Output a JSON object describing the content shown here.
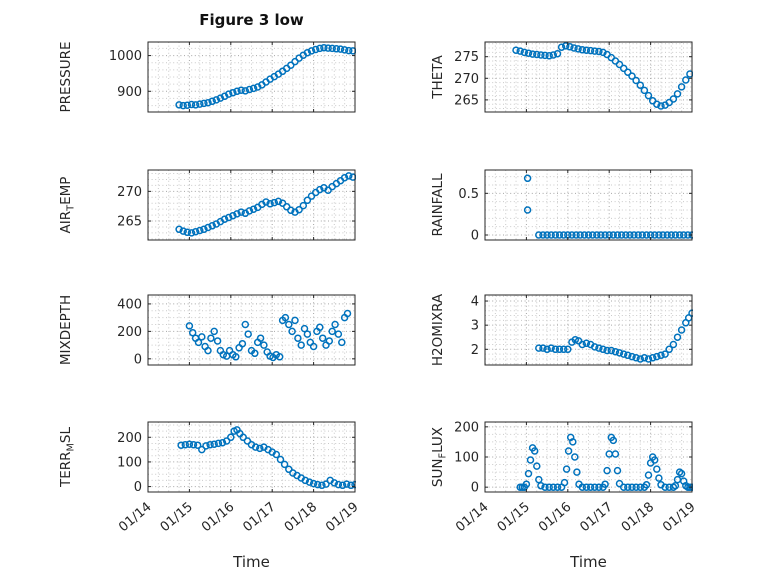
{
  "title": "Figure 3 low",
  "xlabel": "Time",
  "colors": {
    "marker": "#0072BD",
    "grid_major": "#a6a6a6",
    "grid_minor": "#c9c9c9",
    "axis": "#262626",
    "text": "#262626",
    "background": "#ffffff"
  },
  "axes": {
    "xlim": [
      0,
      5
    ],
    "xminor": 0.25,
    "xticks": [
      0,
      1,
      2,
      3,
      4,
      5
    ],
    "xticklabels": [
      "01/14",
      "01/15",
      "01/16",
      "01/17",
      "01/18",
      "01/19"
    ]
  },
  "chart_data": [
    {
      "type": "scatter",
      "id": "pressure",
      "name": "PRESSURE",
      "row": 0,
      "col": 0,
      "label_parts": [
        {
          "t": "PRESSURE"
        }
      ],
      "ylim": [
        842,
        1038
      ],
      "yticks": [
        900,
        1000
      ],
      "ygrid_step": 20,
      "x": [
        0.75,
        0.85,
        0.95,
        1.05,
        1.15,
        1.25,
        1.35,
        1.45,
        1.55,
        1.65,
        1.75,
        1.85,
        1.95,
        2.05,
        2.15,
        2.25,
        2.35,
        2.45,
        2.55,
        2.65,
        2.75,
        2.85,
        2.95,
        3.05,
        3.15,
        3.25,
        3.35,
        3.45,
        3.55,
        3.65,
        3.75,
        3.85,
        3.95,
        4.05,
        4.15,
        4.25,
        4.35,
        4.45,
        4.55,
        4.65,
        4.75,
        4.85,
        4.95
      ],
      "y": [
        862,
        860,
        861,
        863,
        862,
        864,
        866,
        868,
        872,
        876,
        881,
        886,
        892,
        896,
        900,
        903,
        901,
        905,
        908,
        912,
        918,
        926,
        934,
        941,
        948,
        956,
        964,
        973,
        983,
        993,
        1001,
        1008,
        1013,
        1017,
        1020,
        1022,
        1021,
        1020,
        1019,
        1018,
        1016,
        1014,
        1013
      ]
    },
    {
      "type": "scatter",
      "id": "theta",
      "name": "THETA",
      "row": 0,
      "col": 1,
      "label_parts": [
        {
          "t": "THETA"
        }
      ],
      "ylim": [
        262.2,
        278.4
      ],
      "yticks": [
        265,
        270,
        275
      ],
      "ygrid_step": 1,
      "x": [
        0.75,
        0.85,
        0.95,
        1.05,
        1.15,
        1.25,
        1.35,
        1.45,
        1.55,
        1.65,
        1.75,
        1.85,
        1.95,
        2.05,
        2.15,
        2.25,
        2.35,
        2.45,
        2.55,
        2.65,
        2.75,
        2.85,
        2.95,
        3.05,
        3.15,
        3.25,
        3.35,
        3.45,
        3.55,
        3.65,
        3.75,
        3.85,
        3.95,
        4.05,
        4.15,
        4.25,
        4.35,
        4.45,
        4.55,
        4.65,
        4.75,
        4.85,
        4.95
      ],
      "y": [
        276.5,
        276.3,
        276.0,
        275.8,
        275.6,
        275.5,
        275.4,
        275.3,
        275.2,
        275.4,
        275.7,
        277.2,
        277.5,
        277.3,
        277.0,
        276.8,
        276.6,
        276.5,
        276.4,
        276.3,
        276.2,
        276.0,
        275.5,
        274.8,
        274.0,
        273.2,
        272.3,
        271.4,
        270.5,
        269.5,
        268.4,
        267.2,
        266.0,
        264.8,
        264.0,
        263.6,
        263.8,
        264.4,
        265.2,
        266.4,
        268.0,
        269.6,
        271.0
      ]
    },
    {
      "type": "scatter",
      "id": "air-temp",
      "name": "AIR_TEMP",
      "row": 1,
      "col": 0,
      "label_parts": [
        {
          "t": "AIR"
        },
        {
          "t": "T",
          "sub": true
        },
        {
          "t": "EMP"
        }
      ],
      "ylim": [
        261.8,
        273.6
      ],
      "yticks": [
        265,
        270
      ],
      "ygrid_step": 1,
      "x": [
        0.75,
        0.85,
        0.95,
        1.05,
        1.15,
        1.25,
        1.35,
        1.45,
        1.55,
        1.65,
        1.75,
        1.85,
        1.95,
        2.05,
        2.15,
        2.25,
        2.35,
        2.45,
        2.55,
        2.65,
        2.75,
        2.85,
        2.95,
        3.05,
        3.15,
        3.25,
        3.35,
        3.45,
        3.55,
        3.65,
        3.75,
        3.85,
        3.95,
        4.05,
        4.15,
        4.25,
        4.35,
        4.45,
        4.55,
        4.65,
        4.75,
        4.85,
        4.95
      ],
      "y": [
        263.6,
        263.3,
        263.1,
        263.0,
        263.2,
        263.4,
        263.6,
        263.9,
        264.2,
        264.5,
        264.9,
        265.3,
        265.6,
        265.9,
        266.2,
        266.5,
        266.3,
        266.7,
        267.0,
        267.3,
        267.8,
        268.2,
        267.9,
        268.1,
        268.3,
        268.0,
        267.4,
        266.8,
        266.5,
        266.9,
        267.6,
        268.5,
        269.2,
        269.8,
        270.3,
        270.6,
        270.2,
        270.8,
        271.3,
        271.8,
        272.3,
        272.6,
        272.4
      ]
    },
    {
      "type": "scatter",
      "id": "rainfall",
      "name": "RAINFALL",
      "row": 1,
      "col": 1,
      "label_parts": [
        {
          "t": "RAINFALL"
        }
      ],
      "ylim": [
        -0.06,
        0.78
      ],
      "yticks": [
        0,
        0.5
      ],
      "ygrid_step": 0.1,
      "x": [
        1.03,
        1.03,
        1.3,
        1.4,
        1.5,
        1.6,
        1.7,
        1.8,
        1.9,
        2.0,
        2.1,
        2.2,
        2.3,
        2.4,
        2.5,
        2.6,
        2.7,
        2.8,
        2.9,
        3.0,
        3.1,
        3.2,
        3.3,
        3.4,
        3.5,
        3.6,
        3.7,
        3.8,
        3.9,
        4.0,
        4.1,
        4.2,
        4.3,
        4.4,
        4.5,
        4.6,
        4.7,
        4.8,
        4.9,
        5.0
      ],
      "y": [
        0.68,
        0.3,
        0,
        0,
        0,
        0,
        0,
        0,
        0,
        0,
        0,
        0,
        0,
        0,
        0,
        0,
        0,
        0,
        0,
        0,
        0,
        0,
        0,
        0,
        0,
        0,
        0,
        0,
        0,
        0,
        0,
        0,
        0,
        0,
        0,
        0,
        0,
        0,
        0,
        0
      ]
    },
    {
      "type": "scatter",
      "id": "mixdepth",
      "name": "MIXDEPTH",
      "row": 2,
      "col": 0,
      "label_parts": [
        {
          "t": "MIXDEPTH"
        }
      ],
      "ylim": [
        -45,
        465
      ],
      "yticks": [
        0,
        200,
        400
      ],
      "ygrid_step": 50,
      "x": [
        1.0,
        1.08,
        1.15,
        1.22,
        1.3,
        1.38,
        1.45,
        1.52,
        1.6,
        1.68,
        1.75,
        1.82,
        1.9,
        1.97,
        2.05,
        2.12,
        2.2,
        2.28,
        2.35,
        2.42,
        2.5,
        2.58,
        2.65,
        2.72,
        2.8,
        2.88,
        2.95,
        3.02,
        3.1,
        3.18,
        3.25,
        3.32,
        3.4,
        3.48,
        3.55,
        3.62,
        3.7,
        3.78,
        3.85,
        3.92,
        4.0,
        4.08,
        4.15,
        4.22,
        4.3,
        4.38,
        4.45,
        4.52,
        4.6,
        4.68,
        4.75,
        4.82
      ],
      "y": [
        240,
        190,
        150,
        120,
        160,
        90,
        60,
        150,
        200,
        130,
        60,
        30,
        20,
        60,
        30,
        15,
        80,
        110,
        250,
        180,
        60,
        40,
        120,
        150,
        100,
        50,
        20,
        10,
        30,
        15,
        280,
        300,
        250,
        200,
        280,
        150,
        100,
        220,
        180,
        120,
        90,
        200,
        230,
        150,
        100,
        130,
        200,
        250,
        180,
        120,
        300,
        330
      ]
    },
    {
      "type": "scatter",
      "id": "h2omixra",
      "name": "H2OMIXRA",
      "row": 2,
      "col": 1,
      "label_parts": [
        {
          "t": "H2OMIXRA"
        }
      ],
      "ylim": [
        1.35,
        4.25
      ],
      "yticks": [
        2,
        3,
        4
      ],
      "ygrid_step": 0.2,
      "x": [
        1.3,
        1.4,
        1.5,
        1.6,
        1.7,
        1.8,
        1.9,
        2.0,
        2.1,
        2.18,
        2.26,
        2.35,
        2.45,
        2.55,
        2.65,
        2.75,
        2.85,
        2.95,
        3.05,
        3.15,
        3.25,
        3.35,
        3.45,
        3.55,
        3.65,
        3.75,
        3.85,
        3.95,
        4.05,
        4.15,
        4.25,
        4.35,
        4.45,
        4.55,
        4.65,
        4.75,
        4.85,
        4.92,
        5.0
      ],
      "y": [
        2.05,
        2.05,
        2.0,
        2.05,
        2.0,
        2.0,
        2.0,
        2.0,
        2.3,
        2.4,
        2.35,
        2.2,
        2.25,
        2.2,
        2.1,
        2.05,
        2.0,
        1.95,
        1.95,
        1.9,
        1.85,
        1.8,
        1.75,
        1.7,
        1.65,
        1.6,
        1.65,
        1.6,
        1.65,
        1.7,
        1.75,
        1.8,
        2.0,
        2.2,
        2.5,
        2.8,
        3.1,
        3.3,
        3.5
      ]
    },
    {
      "type": "scatter",
      "id": "terr-msl",
      "name": "TERR_MSL",
      "row": 3,
      "col": 0,
      "label_parts": [
        {
          "t": "TERR"
        },
        {
          "t": "M",
          "sub": true
        },
        {
          "t": "SL"
        }
      ],
      "ylim": [
        -22,
        262
      ],
      "yticks": [
        0,
        100,
        200
      ],
      "ygrid_step": 25,
      "x": [
        0.8,
        0.9,
        1.0,
        1.1,
        1.2,
        1.3,
        1.4,
        1.5,
        1.6,
        1.7,
        1.8,
        1.9,
        2.0,
        2.08,
        2.15,
        2.22,
        2.3,
        2.4,
        2.5,
        2.6,
        2.7,
        2.8,
        2.9,
        3.0,
        3.1,
        3.2,
        3.3,
        3.4,
        3.5,
        3.6,
        3.7,
        3.8,
        3.9,
        4.0,
        4.1,
        4.2,
        4.3,
        4.4,
        4.5,
        4.6,
        4.7,
        4.8,
        4.9,
        5.0
      ],
      "y": [
        168,
        170,
        172,
        170,
        168,
        150,
        165,
        170,
        172,
        175,
        178,
        185,
        200,
        225,
        230,
        215,
        200,
        185,
        170,
        160,
        155,
        160,
        150,
        140,
        130,
        110,
        90,
        70,
        55,
        45,
        35,
        25,
        18,
        12,
        8,
        5,
        10,
        25,
        15,
        8,
        5,
        10,
        5,
        8
      ]
    },
    {
      "type": "scatter",
      "id": "sun-flux",
      "name": "SUN_FLUX",
      "row": 3,
      "col": 1,
      "label_parts": [
        {
          "t": "SUN"
        },
        {
          "t": "F",
          "sub": true
        },
        {
          "t": "LUX"
        }
      ],
      "ylim": [
        -16,
        216
      ],
      "yticks": [
        0,
        100,
        200
      ],
      "ygrid_step": 25,
      "x": [
        0.85,
        0.9,
        0.95,
        1.0,
        1.05,
        1.1,
        1.15,
        1.2,
        1.25,
        1.3,
        1.35,
        1.45,
        1.55,
        1.65,
        1.75,
        1.85,
        1.92,
        1.97,
        2.02,
        2.07,
        2.12,
        2.17,
        2.22,
        2.27,
        2.35,
        2.45,
        2.55,
        2.65,
        2.75,
        2.85,
        2.9,
        2.95,
        3.0,
        3.05,
        3.1,
        3.15,
        3.2,
        3.25,
        3.35,
        3.45,
        3.55,
        3.65,
        3.75,
        3.85,
        3.9,
        3.95,
        4.0,
        4.05,
        4.1,
        4.15,
        4.2,
        4.25,
        4.35,
        4.45,
        4.55,
        4.6,
        4.65,
        4.7,
        4.75,
        4.8,
        4.85,
        4.9,
        4.95,
        5.0
      ],
      "y": [
        0,
        0,
        0,
        10,
        45,
        90,
        130,
        120,
        70,
        25,
        5,
        0,
        0,
        0,
        0,
        0,
        15,
        60,
        120,
        165,
        150,
        100,
        50,
        10,
        0,
        0,
        0,
        0,
        0,
        0,
        10,
        55,
        110,
        165,
        155,
        110,
        55,
        12,
        0,
        0,
        0,
        0,
        0,
        0,
        8,
        40,
        80,
        100,
        90,
        60,
        30,
        8,
        0,
        0,
        0,
        5,
        25,
        50,
        45,
        20,
        5,
        0,
        0,
        0
      ]
    }
  ]
}
